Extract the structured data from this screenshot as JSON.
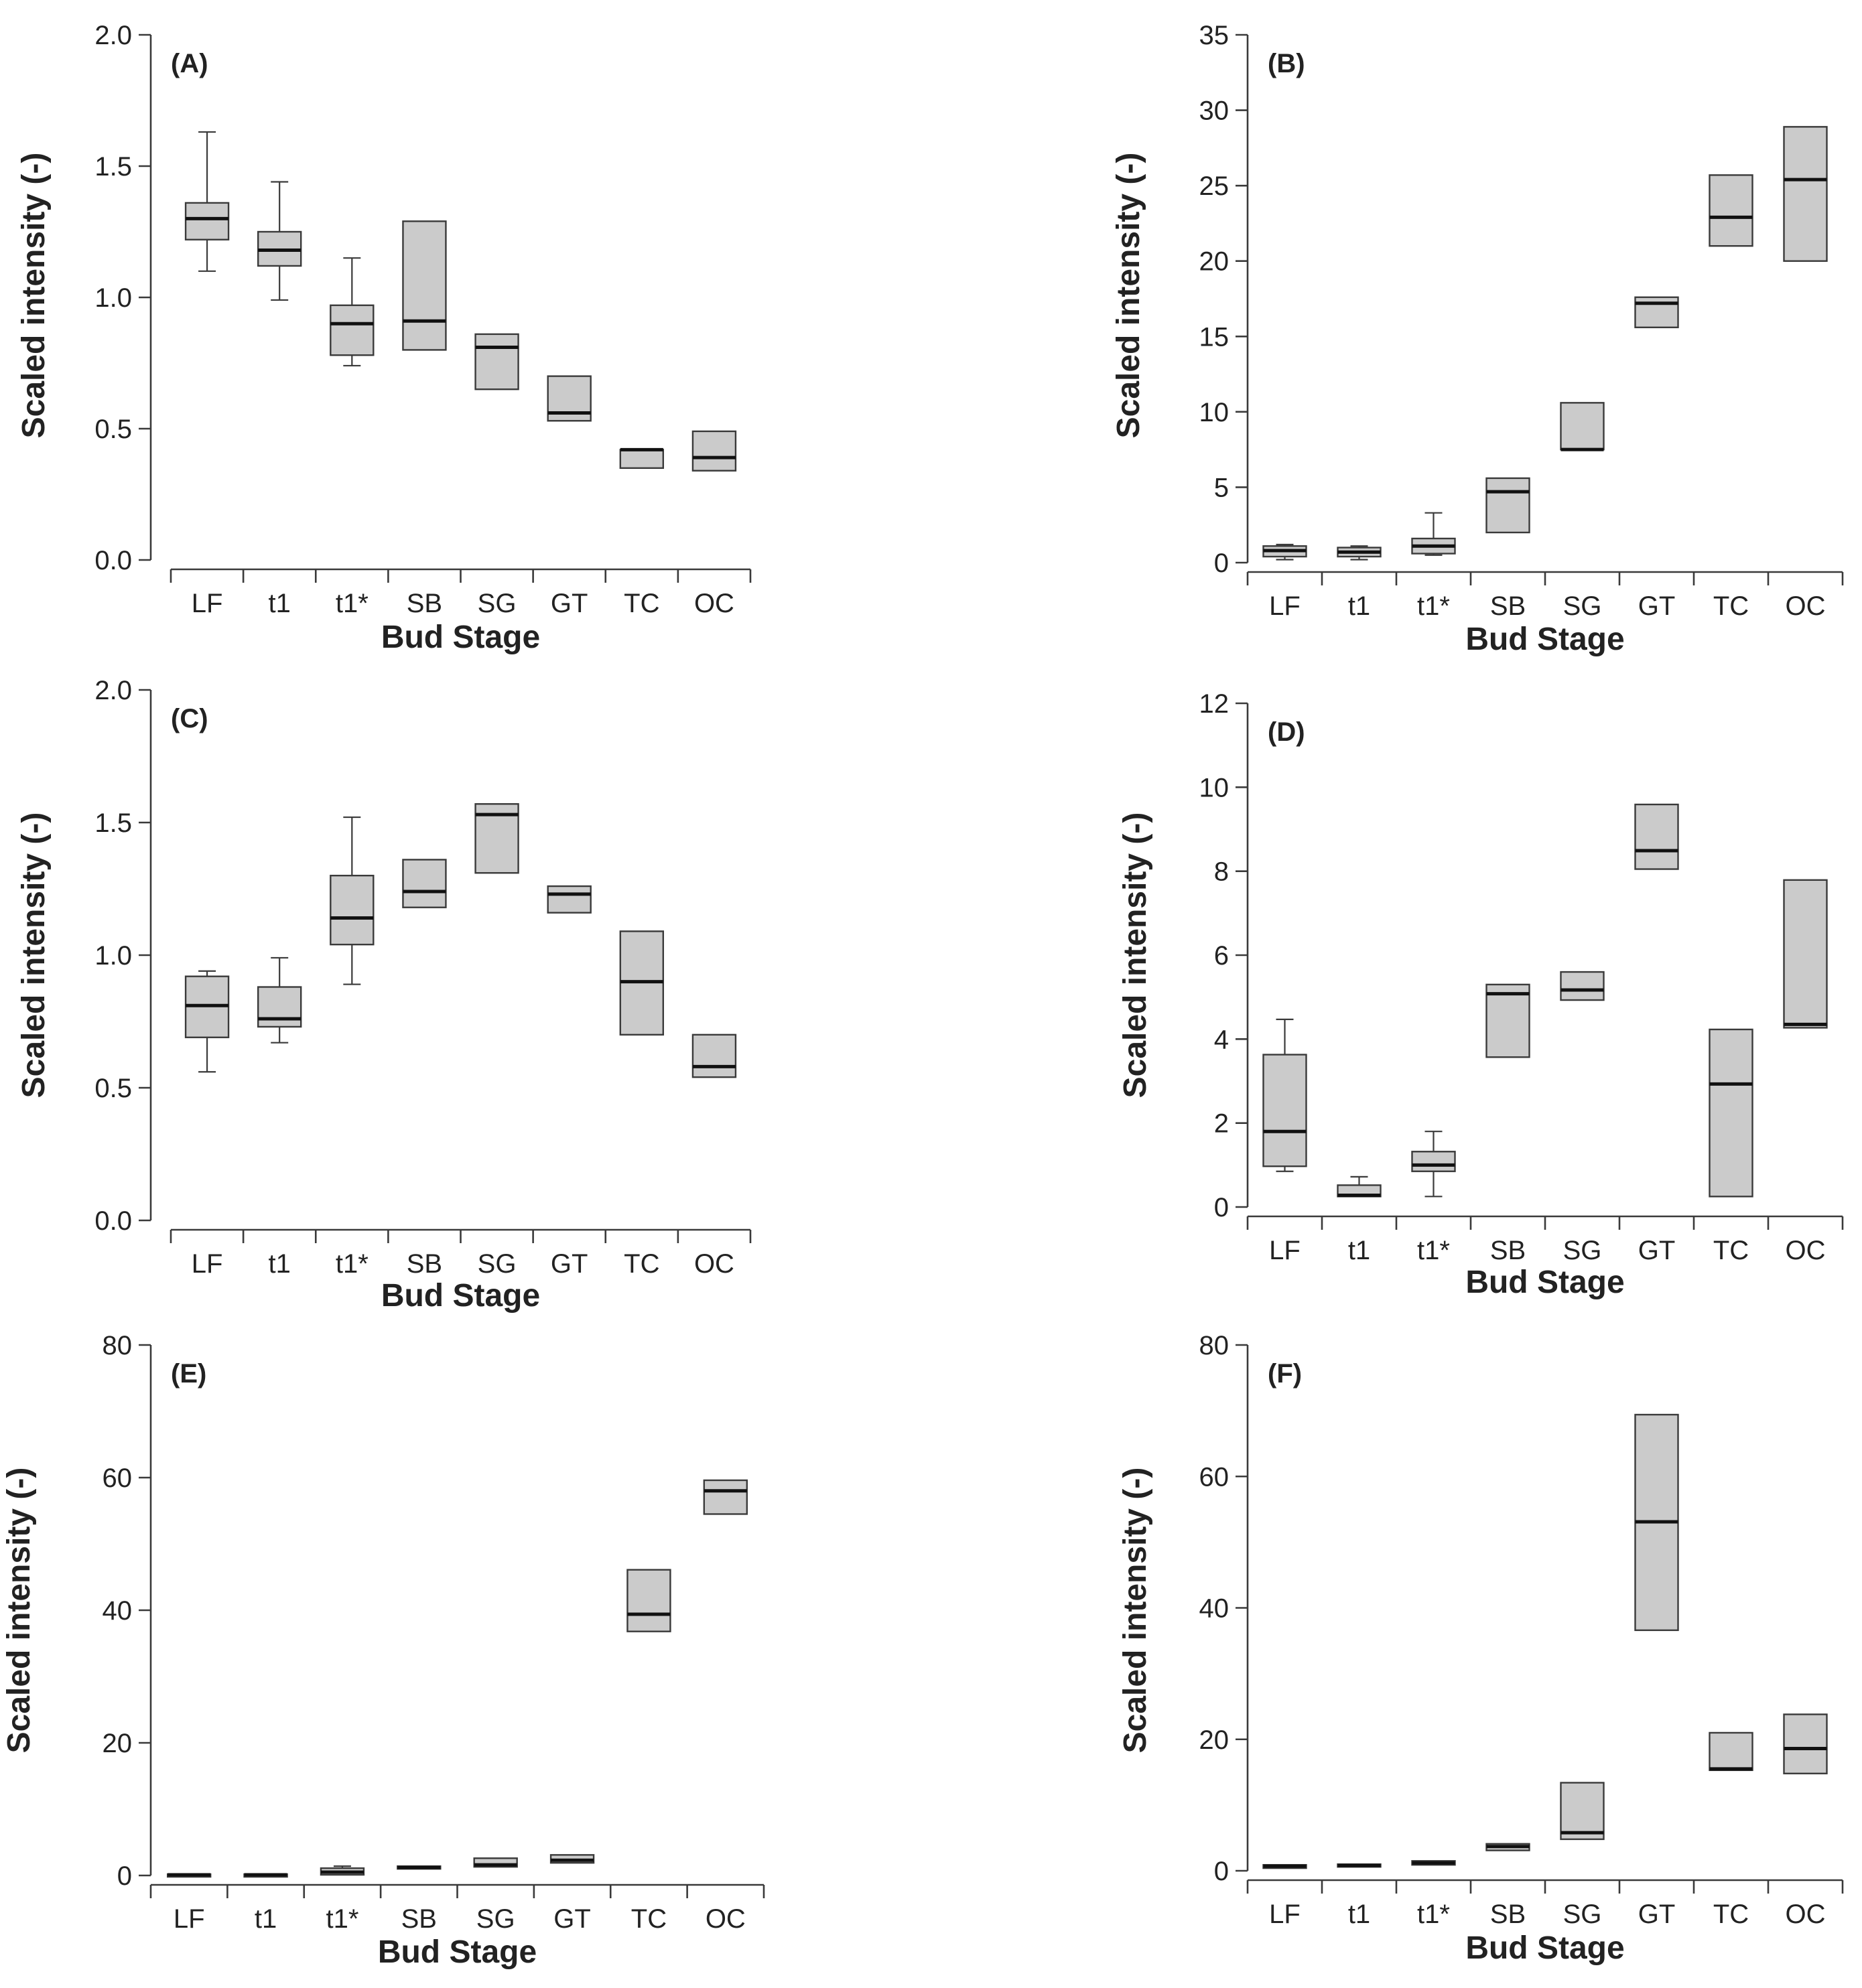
{
  "chart_data": [
    {
      "type": "box",
      "panel_label": "(A)",
      "xlabel": "Bud Stage",
      "ylabel": "Scaled intensity (-)",
      "categories": [
        "LF",
        "t1",
        "t1*",
        "SB",
        "SG",
        "GT",
        "TC",
        "OC"
      ],
      "ylim": [
        0,
        2.0
      ],
      "yticks": [
        0.0,
        0.5,
        1.0,
        1.5,
        2.0
      ],
      "ytick_labels": [
        "0.0",
        "0.5",
        "1.0",
        "1.5",
        "2.0"
      ],
      "boxes": [
        {
          "min": 1.1,
          "q1": 1.22,
          "median": 1.3,
          "q3": 1.36,
          "max": 1.63
        },
        {
          "min": 0.99,
          "q1": 1.12,
          "median": 1.18,
          "q3": 1.25,
          "max": 1.44
        },
        {
          "min": 0.74,
          "q1": 0.78,
          "median": 0.9,
          "q3": 0.97,
          "max": 1.15
        },
        {
          "min": 0.8,
          "q1": 0.8,
          "median": 0.91,
          "q3": 1.29,
          "max": 1.29
        },
        {
          "min": 0.65,
          "q1": 0.65,
          "median": 0.81,
          "q3": 0.86,
          "max": 0.86
        },
        {
          "min": 0.53,
          "q1": 0.53,
          "median": 0.56,
          "q3": 0.7,
          "max": 0.7
        },
        {
          "min": 0.35,
          "q1": 0.35,
          "median": 0.42,
          "q3": 0.42,
          "max": 0.42
        },
        {
          "min": 0.34,
          "q1": 0.34,
          "median": 0.39,
          "q3": 0.49,
          "max": 0.49
        }
      ]
    },
    {
      "type": "box",
      "panel_label": "(B)",
      "xlabel": "Bud Stage",
      "ylabel": "Scaled intensity (-)",
      "categories": [
        "LF",
        "t1",
        "t1*",
        "SB",
        "SG",
        "GT",
        "TC",
        "OC"
      ],
      "ylim": [
        0,
        35
      ],
      "yticks": [
        0,
        5,
        10,
        15,
        20,
        25,
        30,
        35
      ],
      "ytick_labels": [
        "0",
        "5",
        "10",
        "15",
        "20",
        "25",
        "30",
        "35"
      ],
      "boxes": [
        {
          "min": 0.2,
          "q1": 0.4,
          "median": 0.8,
          "q3": 1.1,
          "max": 1.2
        },
        {
          "min": 0.2,
          "q1": 0.4,
          "median": 0.7,
          "q3": 1.0,
          "max": 1.1
        },
        {
          "min": 0.5,
          "q1": 0.6,
          "median": 1.1,
          "q3": 1.6,
          "max": 3.3
        },
        {
          "min": 2.0,
          "q1": 2.0,
          "median": 4.7,
          "q3": 5.6,
          "max": 5.6
        },
        {
          "min": 7.5,
          "q1": 7.5,
          "median": 7.5,
          "q3": 10.6,
          "max": 10.6
        },
        {
          "min": 15.6,
          "q1": 15.6,
          "median": 17.2,
          "q3": 17.6,
          "max": 17.6
        },
        {
          "min": 21.0,
          "q1": 21.0,
          "median": 22.9,
          "q3": 25.7,
          "max": 25.7
        },
        {
          "min": 20.0,
          "q1": 20.0,
          "median": 25.4,
          "q3": 28.9,
          "max": 28.9
        }
      ]
    },
    {
      "type": "box",
      "panel_label": "(C)",
      "xlabel": "Bud Stage",
      "ylabel": "Scaled intensity (-)",
      "categories": [
        "LF",
        "t1",
        "t1*",
        "SB",
        "SG",
        "GT",
        "TC",
        "OC"
      ],
      "ylim": [
        0,
        2.0
      ],
      "yticks": [
        0.0,
        0.5,
        1.0,
        1.5,
        2.0
      ],
      "ytick_labels": [
        "0.0",
        "0.5",
        "1.0",
        "1.5",
        "2.0"
      ],
      "boxes": [
        {
          "min": 0.56,
          "q1": 0.69,
          "median": 0.81,
          "q3": 0.92,
          "max": 0.94
        },
        {
          "min": 0.67,
          "q1": 0.73,
          "median": 0.76,
          "q3": 0.88,
          "max": 0.99
        },
        {
          "min": 0.89,
          "q1": 1.04,
          "median": 1.14,
          "q3": 1.3,
          "max": 1.52
        },
        {
          "min": 1.18,
          "q1": 1.18,
          "median": 1.24,
          "q3": 1.36,
          "max": 1.36
        },
        {
          "min": 1.31,
          "q1": 1.31,
          "median": 1.53,
          "q3": 1.57,
          "max": 1.57
        },
        {
          "min": 1.16,
          "q1": 1.16,
          "median": 1.23,
          "q3": 1.26,
          "max": 1.26
        },
        {
          "min": 0.7,
          "q1": 0.7,
          "median": 0.9,
          "q3": 1.09,
          "max": 1.09
        },
        {
          "min": 0.54,
          "q1": 0.54,
          "median": 0.58,
          "q3": 0.7,
          "max": 0.7
        }
      ]
    },
    {
      "type": "box",
      "panel_label": "(D)",
      "xlabel": "Bud Stage",
      "ylabel": "Scaled intensity (-)",
      "categories": [
        "LF",
        "t1",
        "t1*",
        "SB",
        "SG",
        "GT",
        "TC",
        "OC"
      ],
      "ylim": [
        0,
        12
      ],
      "yticks": [
        0,
        2,
        4,
        6,
        8,
        10,
        12
      ],
      "ytick_labels": [
        "0",
        "2",
        "4",
        "6",
        "8",
        "10",
        "12"
      ],
      "boxes": [
        {
          "min": 0.85,
          "q1": 0.97,
          "median": 1.8,
          "q3": 3.63,
          "max": 4.47
        },
        {
          "min": 0.25,
          "q1": 0.25,
          "median": 0.28,
          "q3": 0.52,
          "max": 0.72
        },
        {
          "min": 0.25,
          "q1": 0.85,
          "median": 1.0,
          "q3": 1.32,
          "max": 1.8
        },
        {
          "min": 3.57,
          "q1": 3.57,
          "median": 5.08,
          "q3": 5.3,
          "max": 5.3
        },
        {
          "min": 4.93,
          "q1": 4.93,
          "median": 5.17,
          "q3": 5.6,
          "max": 5.6
        },
        {
          "min": 8.05,
          "q1": 8.05,
          "median": 8.49,
          "q3": 9.59,
          "max": 9.59
        },
        {
          "min": 0.25,
          "q1": 0.25,
          "median": 2.93,
          "q3": 4.23,
          "max": 4.23
        },
        {
          "min": 4.27,
          "q1": 4.27,
          "median": 4.35,
          "q3": 7.79,
          "max": 7.79
        }
      ]
    },
    {
      "type": "box",
      "panel_label": "(E)",
      "xlabel": "Bud Stage",
      "ylabel": "Scaled intensity (-)",
      "categories": [
        "LF",
        "t1",
        "t1*",
        "SB",
        "SG",
        "GT",
        "TC",
        "OC"
      ],
      "ylim": [
        0,
        80
      ],
      "yticks": [
        0,
        20,
        40,
        60,
        80
      ],
      "ytick_labels": [
        "0",
        "20",
        "40",
        "60",
        "80"
      ],
      "boxes": [
        {
          "min": 0.0,
          "q1": 0.0,
          "median": 0.1,
          "q3": 0.2,
          "max": 0.2
        },
        {
          "min": 0.0,
          "q1": 0.0,
          "median": 0.1,
          "q3": 0.2,
          "max": 0.2
        },
        {
          "min": 0.1,
          "q1": 0.1,
          "median": 0.5,
          "q3": 1.1,
          "max": 1.4
        },
        {
          "min": 1.0,
          "q1": 1.0,
          "median": 1.2,
          "q3": 1.4,
          "max": 1.4
        },
        {
          "min": 1.3,
          "q1": 1.3,
          "median": 1.6,
          "q3": 2.6,
          "max": 2.6
        },
        {
          "min": 1.9,
          "q1": 1.9,
          "median": 2.3,
          "q3": 3.1,
          "max": 3.1
        },
        {
          "min": 36.8,
          "q1": 36.8,
          "median": 39.4,
          "q3": 46.1,
          "max": 46.1
        },
        {
          "min": 54.5,
          "q1": 54.5,
          "median": 58.0,
          "q3": 59.6,
          "max": 59.6
        }
      ]
    },
    {
      "type": "box",
      "panel_label": "(F)",
      "xlabel": "Bud Stage",
      "ylabel": "Scaled intensity (-)",
      "categories": [
        "LF",
        "t1",
        "t1*",
        "SB",
        "SG",
        "GT",
        "TC",
        "OC"
      ],
      "ylim": [
        0,
        80
      ],
      "yticks": [
        0,
        20,
        40,
        60,
        80
      ],
      "ytick_labels": [
        "0",
        "20",
        "40",
        "60",
        "80"
      ],
      "boxes": [
        {
          "min": 0.4,
          "q1": 0.4,
          "median": 0.7,
          "q3": 0.9,
          "max": 0.9
        },
        {
          "min": 0.6,
          "q1": 0.6,
          "median": 0.8,
          "q3": 1.0,
          "max": 1.0
        },
        {
          "min": 0.9,
          "q1": 0.9,
          "median": 1.2,
          "q3": 1.5,
          "max": 1.5
        },
        {
          "min": 3.1,
          "q1": 3.1,
          "median": 3.7,
          "q3": 4.1,
          "max": 4.1
        },
        {
          "min": 4.8,
          "q1": 4.8,
          "median": 5.8,
          "q3": 13.4,
          "max": 13.4
        },
        {
          "min": 36.6,
          "q1": 36.6,
          "median": 53.1,
          "q3": 69.4,
          "max": 69.4
        },
        {
          "min": 15.3,
          "q1": 15.3,
          "median": 15.5,
          "q3": 21.0,
          "max": 21.0
        },
        {
          "min": 14.8,
          "q1": 14.8,
          "median": 18.6,
          "q3": 23.8,
          "max": 23.8
        }
      ]
    }
  ]
}
